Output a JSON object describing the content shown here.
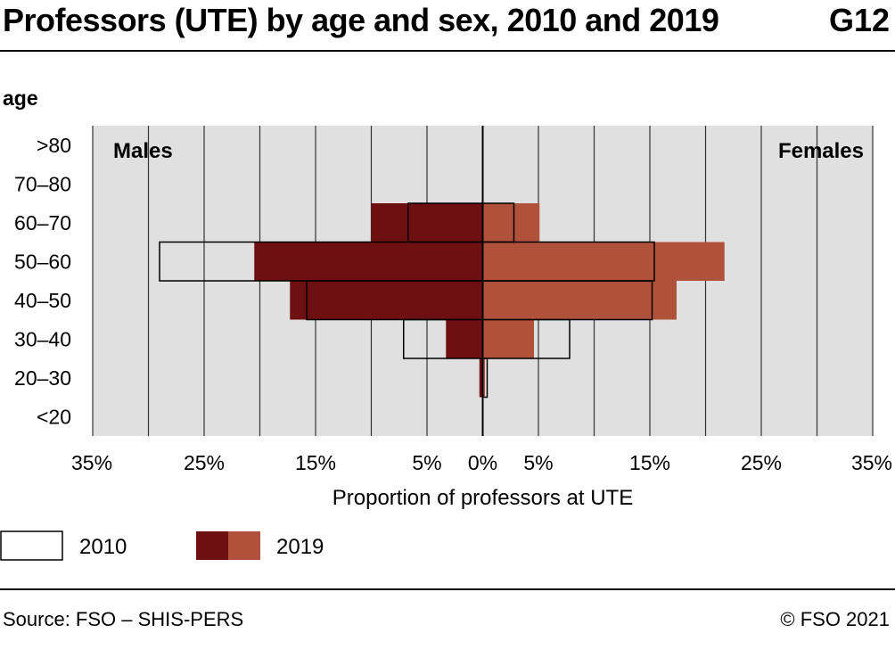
{
  "header": {
    "title": "Professors (UTE) by age and sex, 2010 and 2019",
    "code": "G12"
  },
  "footer": {
    "source": "Source: FSO – SHIS-PERS",
    "copyright": "© FSO 2021"
  },
  "colors": {
    "plot_background": "#dfe0df",
    "grid": "#333333",
    "males_2019": "#6e1011",
    "females_2019": "#b0523b",
    "outline_2010": "#000000"
  },
  "chart_data": {
    "type": "bar",
    "orientation": "horizontal",
    "subtype": "population-pyramid",
    "ylabel": "age",
    "xlabel": "Proportion of professors at UTE",
    "categories": [
      ">80",
      "70–80",
      "60–70",
      "50–60",
      "40–50",
      "30–40",
      "20–30",
      "<20"
    ],
    "side_labels": {
      "left": "Males",
      "right": "Females"
    },
    "x_ticks": [
      "35%",
      "25%",
      "15%",
      "5%",
      "0%",
      "5%",
      "15%",
      "25%",
      "35%"
    ],
    "x_tick_values": [
      -35,
      -25,
      -15,
      -5,
      0,
      5,
      15,
      25,
      35
    ],
    "xlim": [
      -35,
      35
    ],
    "grid": true,
    "legend": {
      "placement": "bottom-left",
      "entries": [
        "2010",
        "2019"
      ]
    },
    "series": [
      {
        "name": "2019",
        "side": "Males",
        "style": "filled",
        "values": [
          0,
          0,
          10.0,
          20.5,
          17.3,
          3.3,
          0.3,
          0
        ]
      },
      {
        "name": "2019",
        "side": "Females",
        "style": "filled",
        "values": [
          0,
          0,
          5.1,
          21.7,
          17.4,
          4.6,
          0.2,
          0
        ]
      },
      {
        "name": "2010",
        "side": "Males",
        "style": "outline",
        "values": [
          0,
          0,
          6.7,
          29.0,
          15.8,
          7.1,
          0,
          0
        ]
      },
      {
        "name": "2010",
        "side": "Females",
        "style": "outline",
        "values": [
          0,
          0,
          2.8,
          15.4,
          15.2,
          7.8,
          0.4,
          0
        ]
      }
    ]
  }
}
